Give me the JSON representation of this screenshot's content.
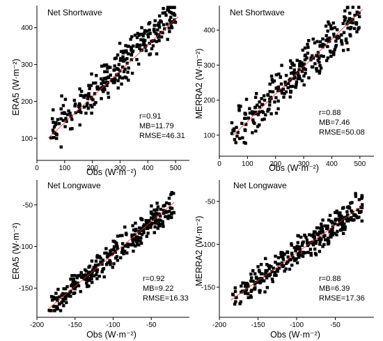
{
  "chart_data": [
    {
      "id": "era5-sw",
      "type": "scatter",
      "title": "Net Shortwave",
      "xlabel": "Obs (W·m⁻²)",
      "ylabel": "ERA5 (W·m⁻²)",
      "xlim": [
        0,
        550
      ],
      "ylim": [
        40,
        460
      ],
      "xticks": [
        0,
        100,
        200,
        300,
        400,
        500
      ],
      "yticks": [
        100,
        200,
        300,
        400
      ],
      "fit_line": [
        [
          40,
          100
        ],
        [
          510,
          430
        ]
      ],
      "stats": [
        "r=0.91",
        "MB=11.79",
        "RMSE=46.31"
      ],
      "trend": {
        "x0": 40,
        "x1": 500,
        "slope": 0.72,
        "intercept": 80,
        "noise": 38,
        "n": 290,
        "seed": 11
      }
    },
    {
      "id": "merra2-sw",
      "type": "scatter",
      "title": "Net Shortwave",
      "xlabel": "Obs (W·m⁻²)",
      "ylabel": "MERRA2 (W·m⁻²)",
      "xlim": [
        0,
        550
      ],
      "ylim": [
        40,
        470
      ],
      "xticks": [
        0,
        100,
        200,
        300,
        400,
        500
      ],
      "yticks": [
        100,
        200,
        300,
        400
      ],
      "fit_line": [
        [
          50,
          100
        ],
        [
          510,
          460
        ]
      ],
      "stats": [
        "r=0.88",
        "MB=7.46",
        "RMSE=50.08"
      ],
      "trend": {
        "x0": 40,
        "x1": 500,
        "slope": 0.73,
        "intercept": 75,
        "noise": 45,
        "n": 290,
        "seed": 23
      }
    },
    {
      "id": "era5-lw",
      "type": "scatter",
      "title": "Net Longwave",
      "xlabel": "Obs (W·m⁻²)",
      "ylabel": "ERA5 (W·m⁻²)",
      "xlim": [
        -200,
        0
      ],
      "ylim": [
        -185,
        -20
      ],
      "xticks": [
        -200,
        -150,
        -100,
        -50
      ],
      "yticks": [
        -150,
        -100,
        -50
      ],
      "fit_line": [
        [
          -185,
          -175
        ],
        [
          -20,
          -47
        ]
      ],
      "stats": [
        "r=0.92",
        "MB=9.22",
        "RMSE=16.33"
      ],
      "trend": {
        "x0": -185,
        "x1": -20,
        "slope": 0.77,
        "intercept": -33,
        "noise": 12,
        "n": 320,
        "seed": 37
      }
    },
    {
      "id": "merra2-lw",
      "type": "scatter",
      "title": "Net Longwave",
      "xlabel": "Obs (W·m⁻²)",
      "ylabel": "MERRA2 (W·m⁻²)",
      "xlim": [
        -200,
        0
      ],
      "ylim": [
        -185,
        -25
      ],
      "xticks": [
        -200,
        -150,
        -100,
        -50
      ],
      "yticks": [
        -150,
        -100,
        -50
      ],
      "fit_line": [
        [
          -185,
          -165
        ],
        [
          -15,
          -55
        ]
      ],
      "stats": [
        "r=0.88",
        "MB=6.39",
        "RMSE=17.36"
      ],
      "trend": {
        "x0": -185,
        "x1": -15,
        "slope": 0.64,
        "intercept": -45,
        "noise": 13,
        "n": 320,
        "seed": 53
      }
    }
  ]
}
